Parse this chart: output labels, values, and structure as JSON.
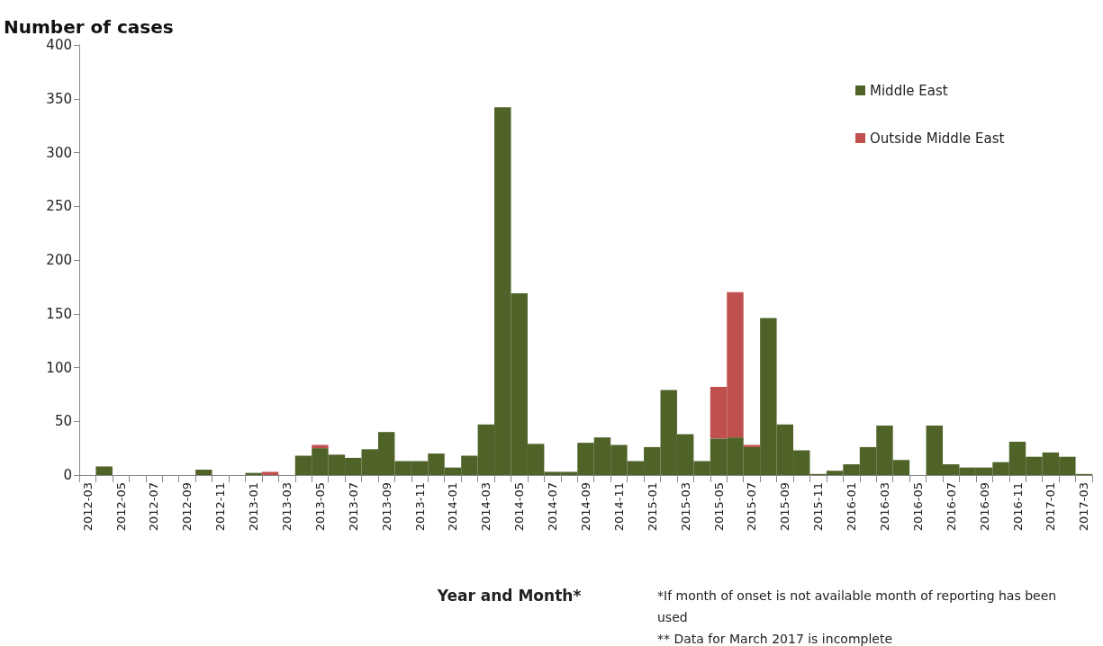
{
  "chart_data": {
    "type": "bar",
    "stacked": true,
    "ylabel": "Number of cases",
    "xlabel": "Year and Month*",
    "categories": [
      "2012-03",
      null,
      "2012-05",
      null,
      "2012-07",
      null,
      "2012-09",
      null,
      "2012-11",
      null,
      "2013-01",
      null,
      "2013-03",
      null,
      "2013-05",
      null,
      "2013-07",
      null,
      "2013-09",
      null,
      "2013-11",
      null,
      "2014-01",
      null,
      "2014-03",
      null,
      "2014-05",
      null,
      "2014-07",
      null,
      "2014-09",
      null,
      "2014-11",
      null,
      "2015-01",
      null,
      "2015-03",
      null,
      "2015-05",
      null,
      "2015-07",
      null,
      "2015-09",
      null,
      "2015-11",
      null,
      "2016-01",
      null,
      "2016-03",
      null,
      "2016-05",
      null,
      "2016-07",
      null,
      "2016-09",
      null,
      "2016-11",
      null,
      "2017-01",
      null,
      "2017-03"
    ],
    "series": [
      {
        "name": "Middle East",
        "color": "#4f6228",
        "values": [
          0,
          8,
          0,
          0,
          0,
          0,
          0,
          5,
          0,
          0,
          2,
          0,
          0,
          18,
          25,
          19,
          16,
          24,
          40,
          13,
          13,
          20,
          7,
          18,
          47,
          342,
          169,
          29,
          3,
          3,
          30,
          35,
          28,
          13,
          26,
          79,
          38,
          13,
          34,
          35,
          26,
          146,
          47,
          23,
          1,
          4,
          10,
          26,
          46,
          14,
          0,
          46,
          10,
          7,
          7,
          12,
          31,
          17,
          21,
          17,
          1
        ]
      },
      {
        "name": "Outside Middle East",
        "color": "#c0504d",
        "values": [
          0,
          0,
          0,
          0,
          0,
          0,
          0,
          0,
          0,
          0,
          0,
          3,
          0,
          0,
          3,
          0,
          0,
          0,
          0,
          0,
          0,
          0,
          0,
          0,
          0,
          0,
          0,
          0,
          0,
          0,
          0,
          0,
          0,
          0,
          0,
          0,
          0,
          0,
          48,
          135,
          2,
          0,
          0,
          0,
          0,
          0,
          0,
          0,
          0,
          0,
          0,
          0,
          0,
          0,
          0,
          0,
          0,
          0,
          0,
          0,
          0
        ]
      }
    ],
    "ylim": [
      0,
      400
    ],
    "yticks": [
      0,
      50,
      100,
      150,
      200,
      250,
      300,
      350,
      400
    ],
    "grid": false,
    "legend": "top right",
    "annotations": [
      "*If month of onset is not available month of reporting has been used",
      "** Data for March 2017 is incomplete"
    ]
  }
}
